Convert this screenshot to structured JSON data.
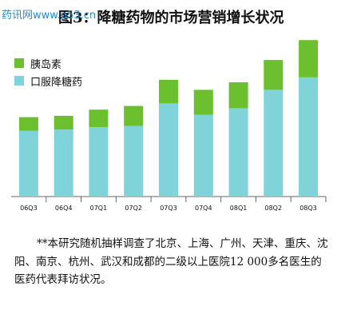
{
  "watermark": "药讯网www.p53.cn",
  "title": "图3：降糖药物的市场营销增长状况",
  "colors": {
    "insulin": "#6cbf2f",
    "oral": "#7fd3d9",
    "axis": "#666666"
  },
  "chart_data": {
    "type": "bar",
    "stacked": true,
    "categories": [
      "06Q3",
      "06Q4",
      "07Q1",
      "07Q2",
      "07Q3",
      "07Q4",
      "08Q1",
      "08Q2",
      "08Q3"
    ],
    "series": [
      {
        "name": "口服降糖药",
        "values": [
          53,
          54,
          56,
          57,
          75,
          66,
          71,
          86,
          96
        ]
      },
      {
        "name": "胰岛素",
        "values": [
          11,
          11,
          14,
          16,
          19,
          20,
          21,
          24,
          30
        ]
      }
    ],
    "ylim": [
      0,
      130
    ],
    "legend_position": "top-left"
  },
  "footnote": "**本研究随机抽样调查了北京、上海、广州、天津、重庆、沈阳、南京、杭州、武汉和成都的二级以上医院12 000多名医生的医药代表拜访状况。"
}
